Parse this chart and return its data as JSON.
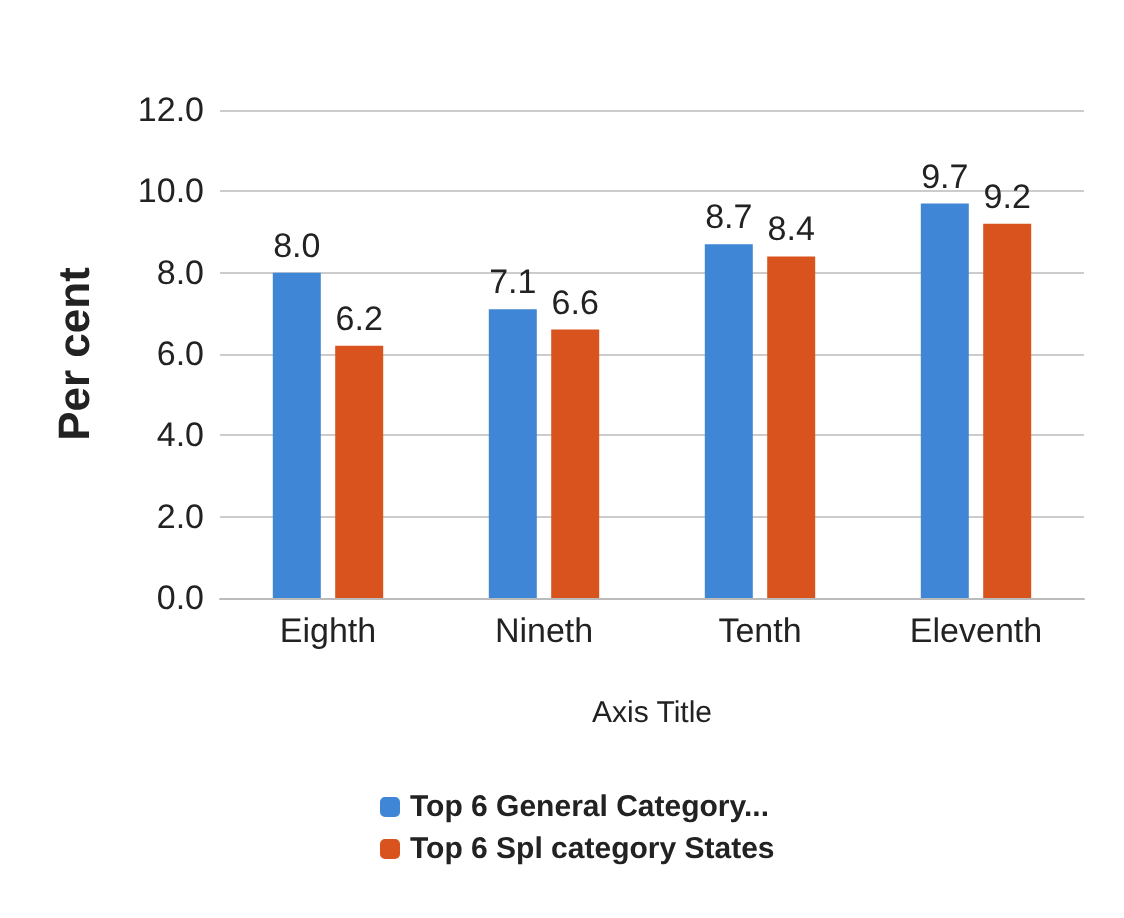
{
  "chart_data": {
    "type": "bar",
    "ylabel": "Per cent",
    "xlabel": "Axis Title",
    "categories": [
      "Eighth",
      "Nineth",
      "Tenth",
      "Eleventh"
    ],
    "series": [
      {
        "name": "Top 6 General Category...",
        "color": "#3f86d6",
        "values": [
          8.0,
          7.1,
          8.7,
          9.7
        ],
        "value_labels": [
          "8.0",
          "7.1",
          "8.7",
          "9.7"
        ]
      },
      {
        "name": "Top 6 Spl category States",
        "color": "#d9531e",
        "values": [
          6.2,
          6.6,
          8.4,
          9.2
        ],
        "value_labels": [
          "6.2",
          "6.6",
          "8.4",
          "9.2"
        ]
      }
    ],
    "ylim": [
      0,
      12
    ],
    "yticks": [
      {
        "value": 0,
        "label": "0.0"
      },
      {
        "value": 2,
        "label": "2.0"
      },
      {
        "value": 4,
        "label": "4.0"
      },
      {
        "value": 6,
        "label": "6.0"
      },
      {
        "value": 8,
        "label": "8.0"
      },
      {
        "value": 10,
        "label": "10.0"
      },
      {
        "value": 12,
        "label": "12.0"
      }
    ],
    "grid": "y",
    "legend": "bottom"
  }
}
